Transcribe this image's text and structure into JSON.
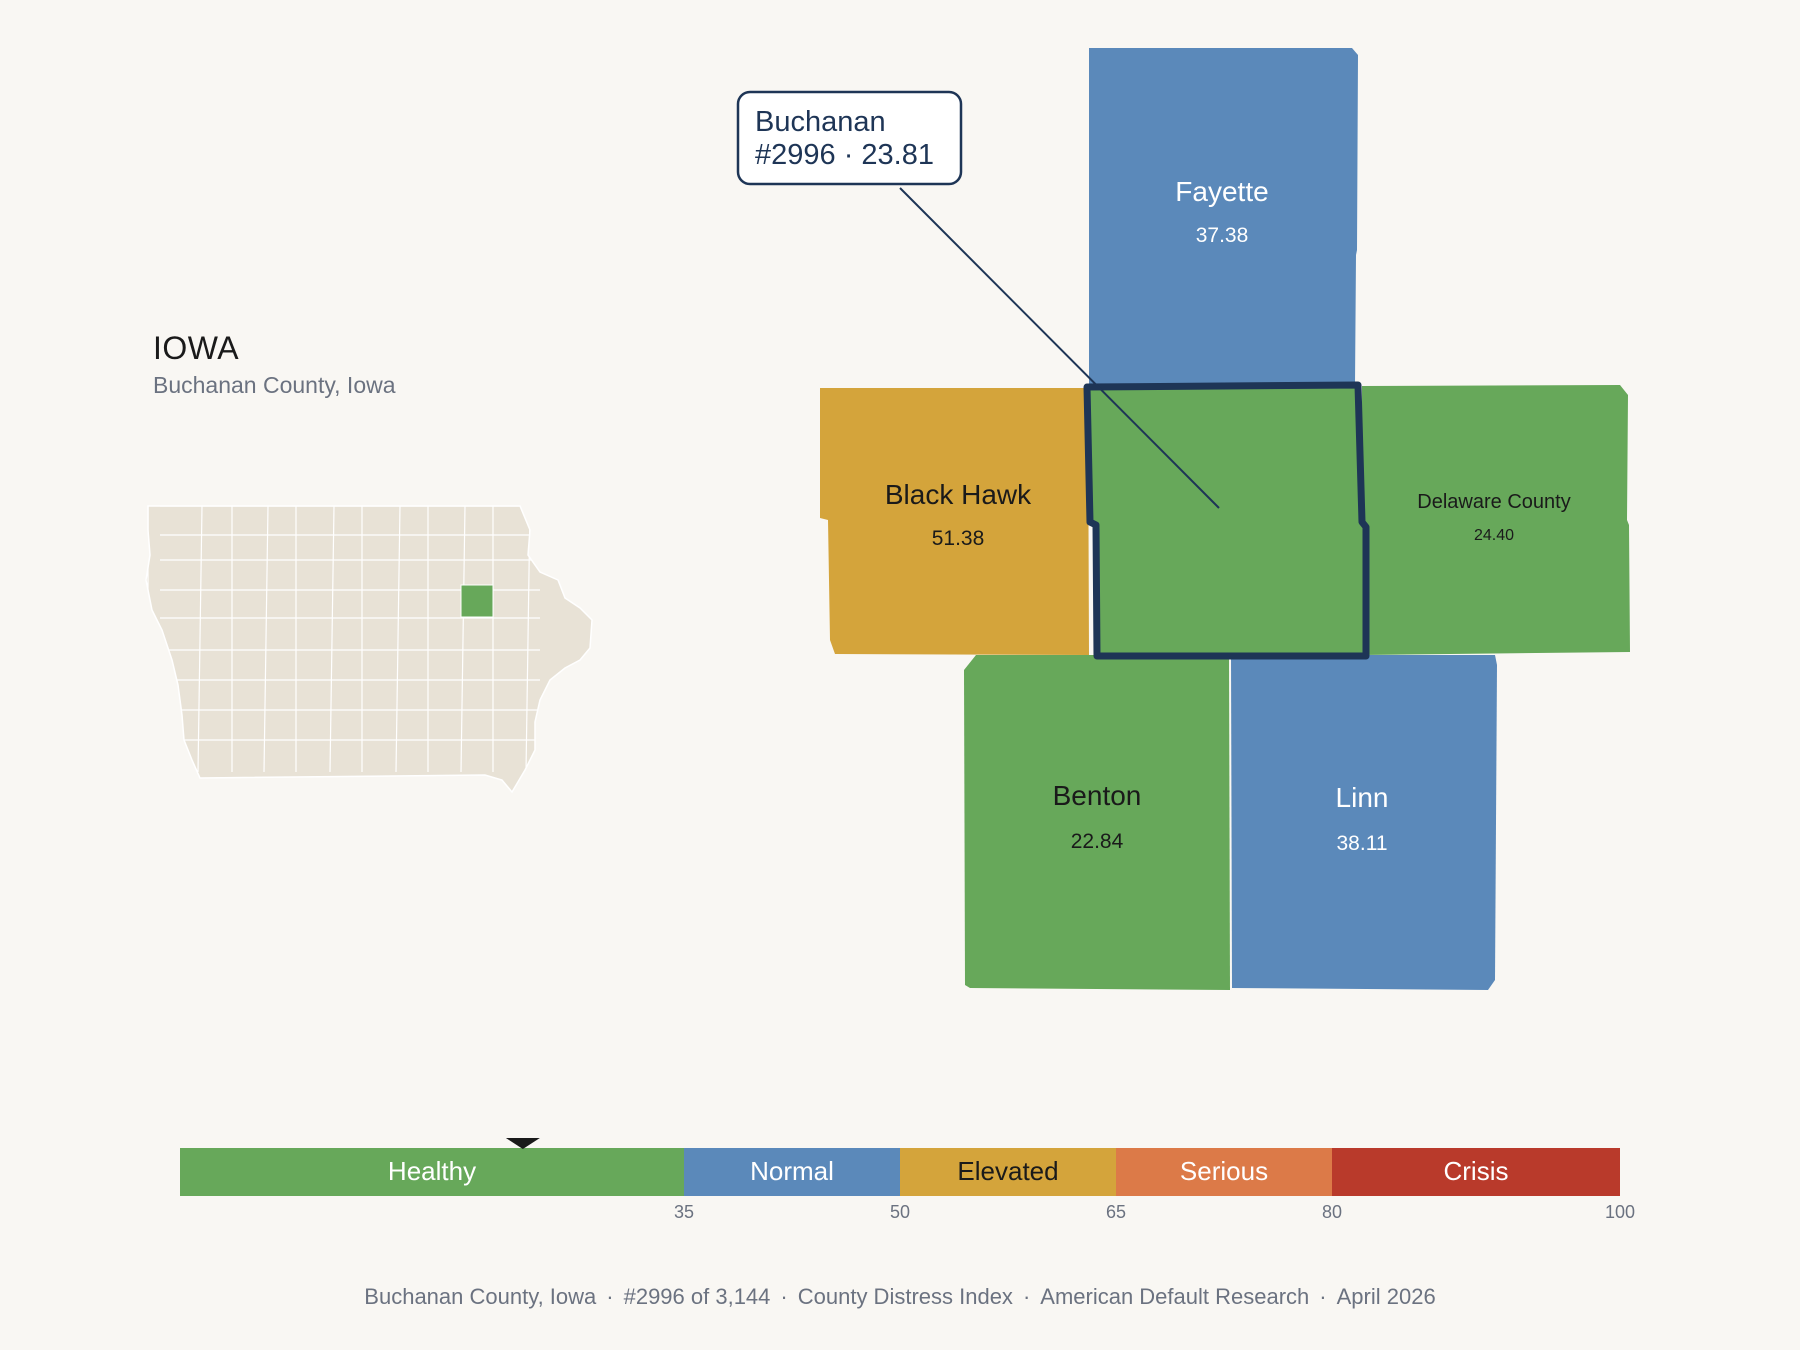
{
  "state": {
    "title": "IOWA",
    "subtitle": "Buchanan County, Iowa"
  },
  "callout": {
    "name": "Buchanan",
    "rank_value": "#2996 · 23.81"
  },
  "focus": {
    "name": "Buchanan",
    "value": 23.81,
    "category": "Healthy",
    "color": "#67a85a"
  },
  "counties": [
    {
      "name": "Fayette",
      "value": "37.38",
      "category": "Normal",
      "color": "#5b89ba",
      "text_color": "#ffffff"
    },
    {
      "name": "Black Hawk",
      "value": "51.38",
      "category": "Elevated",
      "color": "#d4a43b",
      "text_color": "#1a1a1a"
    },
    {
      "name": "Delaware County",
      "value": "24.40",
      "category": "Healthy",
      "color": "#67a85a",
      "text_color": "#1a1a1a"
    },
    {
      "name": "Benton",
      "value": "22.84",
      "category": "Healthy",
      "color": "#67a85a",
      "text_color": "#1a1a1a"
    },
    {
      "name": "Linn",
      "value": "38.11",
      "category": "Normal",
      "color": "#5b89ba",
      "text_color": "#ffffff"
    }
  ],
  "scale": {
    "min": 0,
    "max": 100,
    "marker_value": 23.81,
    "segments": [
      {
        "label": "Healthy",
        "from": 0,
        "to": 35,
        "color": "#67a85a"
      },
      {
        "label": "Normal",
        "from": 35,
        "to": 50,
        "color": "#5b89ba"
      },
      {
        "label": "Elevated",
        "from": 50,
        "to": 65,
        "color": "#d4a43b"
      },
      {
        "label": "Serious",
        "from": 65,
        "to": 80,
        "color": "#dc7a48"
      },
      {
        "label": "Crisis",
        "from": 80,
        "to": 100,
        "color": "#b93a2b"
      }
    ],
    "ticks": [
      "35",
      "50",
      "65",
      "80",
      "100"
    ]
  },
  "footer": {
    "items": [
      "Buchanan County, Iowa",
      "#2996 of 3,144",
      "County Distress Index",
      "American Default Research",
      "April 2026"
    ],
    "separator": "·"
  },
  "colors": {
    "background": "#f9f7f3",
    "outline": "#1e3556",
    "inset_fill": "#e8e2d6"
  }
}
